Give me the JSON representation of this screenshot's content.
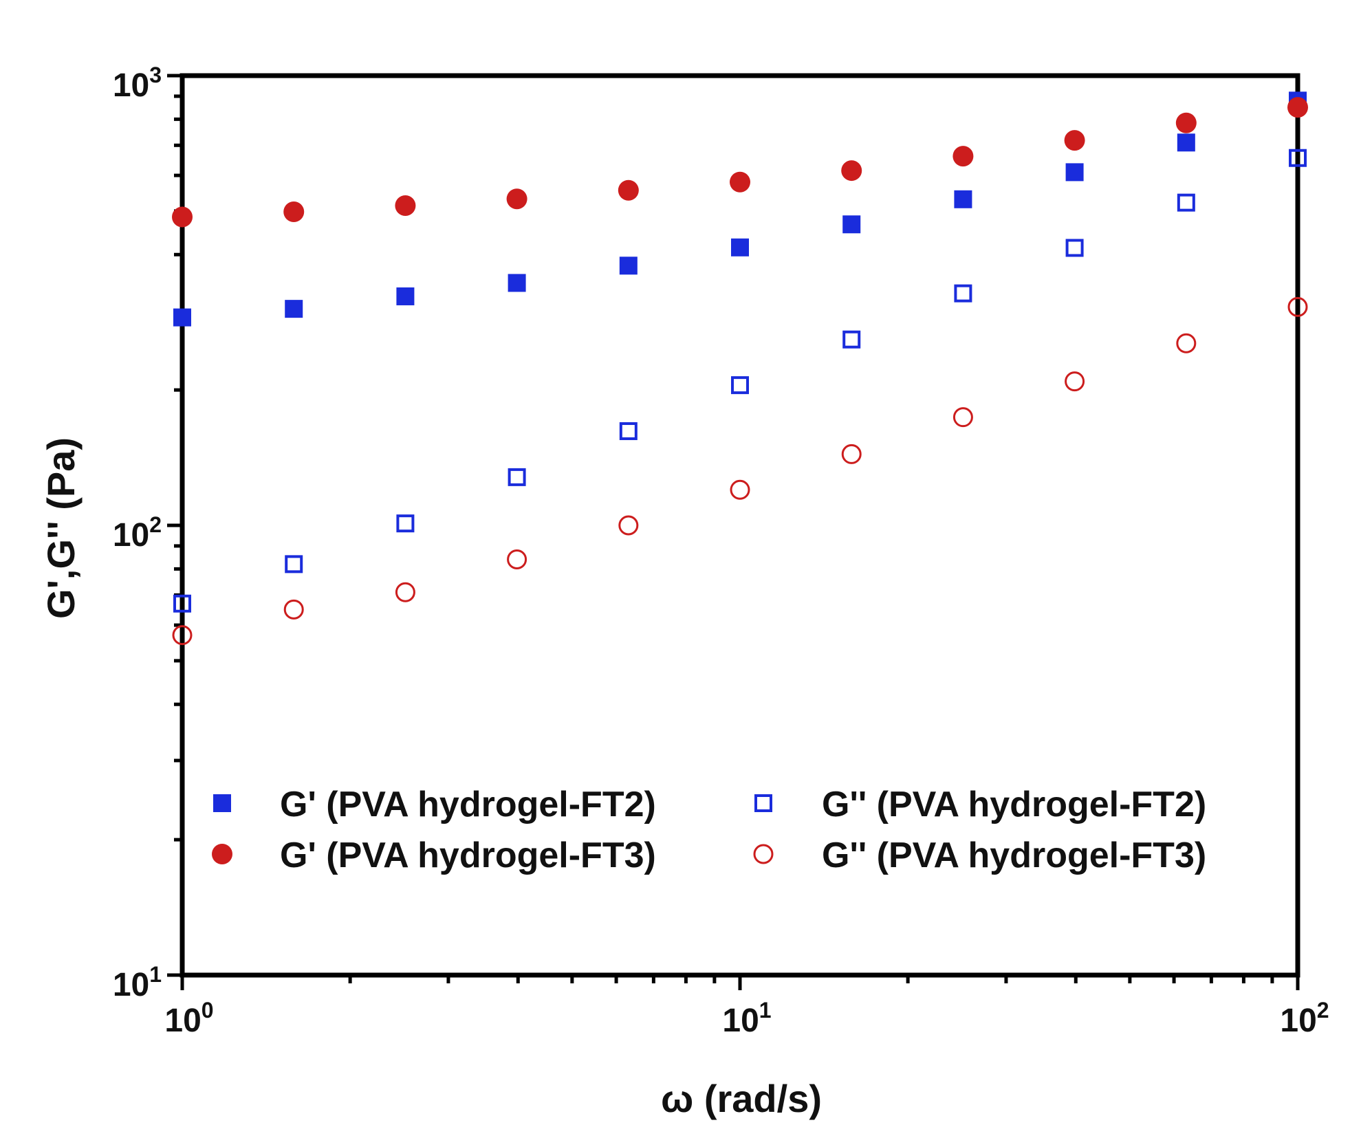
{
  "chart_data": {
    "type": "scatter",
    "title": "",
    "xlabel": "ω (rad/s)",
    "ylabel": "G',G'' (Pa)",
    "xscale": "log",
    "yscale": "log",
    "xlim": [
      1,
      100
    ],
    "ylim": [
      10,
      1000
    ],
    "x_ticks": [
      {
        "value": 1,
        "base": "10",
        "exp": "0"
      },
      {
        "value": 10,
        "base": "10",
        "exp": "1"
      },
      {
        "value": 100,
        "base": "10",
        "exp": "2"
      }
    ],
    "y_ticks": [
      {
        "value": 10,
        "base": "10",
        "exp": "1"
      },
      {
        "value": 100,
        "base": "10",
        "exp": "2"
      },
      {
        "value": 1000,
        "base": "10",
        "exp": "3"
      }
    ],
    "x": [
      1,
      1.585,
      2.512,
      3.981,
      6.31,
      10,
      15.85,
      25.12,
      39.81,
      63.1,
      100
    ],
    "legend_position": "lower-center, two columns",
    "series": [
      {
        "name": "G' (PVA hydrogel-FT2)",
        "marker": "square-filled",
        "color": "#1a2cdc",
        "values": [
          290,
          303,
          323,
          346,
          378,
          415,
          467,
          531,
          610,
          710,
          880
        ]
      },
      {
        "name": "G' (PVA hydrogel-FT3)",
        "marker": "circle-filled",
        "color": "#cc1d1d",
        "values": [
          485,
          498,
          514,
          532,
          556,
          580,
          615,
          662,
          718,
          785,
          850
        ]
      },
      {
        "name": "G'' (PVA hydrogel-FT2)",
        "marker": "square-open",
        "color": "#1a2cdc",
        "values": [
          67,
          82,
          101,
          128,
          162,
          205,
          259,
          328,
          414,
          522,
          656
        ]
      },
      {
        "name": "G'' (PVA hydrogel-FT3)",
        "marker": "circle-open",
        "color": "#cc1d1d",
        "values": [
          57,
          65,
          71,
          84,
          100,
          120,
          144,
          174,
          209,
          254,
          306
        ]
      }
    ]
  }
}
